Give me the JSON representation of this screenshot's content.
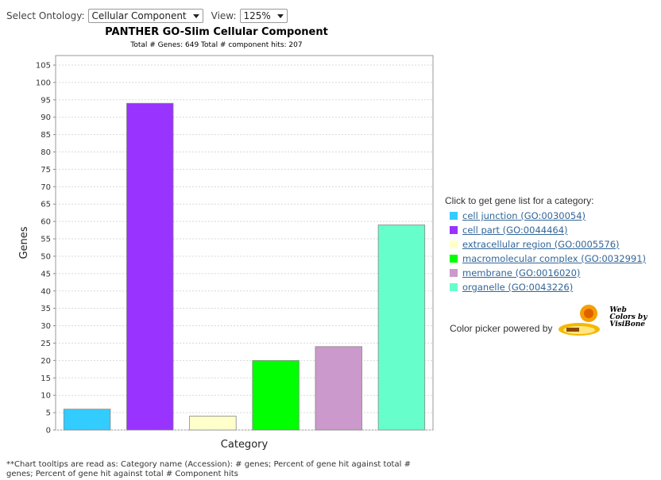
{
  "toolbar": {
    "ontology_label": "Select Ontology:",
    "ontology_value": "Cellular Component",
    "view_label": "View:",
    "view_value": "125%"
  },
  "legend": {
    "heading": "Click to get gene list for a category:",
    "items": [
      {
        "label": "cell junction (GO:0030054)",
        "color": "#33CCFF"
      },
      {
        "label": "cell part (GO:0044464)",
        "color": "#9933FF"
      },
      {
        "label": "extracellular region (GO:0005576)",
        "color": "#FFFFCC"
      },
      {
        "label": "macromolecular complex (GO:0032991)",
        "color": "#00FF00"
      },
      {
        "label": "membrane (GO:0016020)",
        "color": "#CC99CC"
      },
      {
        "label": "organelle (GO:0043226)",
        "color": "#66FFCC"
      }
    ]
  },
  "powered": {
    "text": "Color picker powered by",
    "logo_text": "Web Colors by VisiBone",
    "logo_line1": "Web",
    "logo_line2": "Colors by",
    "logo_line3": "VisiBone"
  },
  "footnote": "**Chart tooltips are read as: Category name (Accession): # genes; Percent of gene hit against total # genes; Percent of gene hit against total # Component hits",
  "chart_data": {
    "type": "bar",
    "title": "PANTHER GO-Slim Cellular Component",
    "subtitle": "Total # Genes: 649    Total # component hits: 207",
    "xlabel": "Category",
    "ylabel": "Genes",
    "ylim": [
      0,
      105
    ],
    "yticks": [
      0,
      5,
      10,
      15,
      20,
      25,
      30,
      35,
      40,
      45,
      50,
      55,
      60,
      65,
      70,
      75,
      80,
      85,
      90,
      95,
      100,
      105
    ],
    "grid": true,
    "legend_position": "right",
    "categories": [
      "cell junction (GO:0030054)",
      "cell part (GO:0044464)",
      "extracellular region (GO:0005576)",
      "macromolecular complex (GO:0032991)",
      "membrane (GO:0016020)",
      "organelle (GO:0043226)"
    ],
    "values": [
      6,
      94,
      4,
      20,
      24,
      59
    ],
    "colors": [
      "#33CCFF",
      "#9933FF",
      "#FFFFCC",
      "#00FF00",
      "#CC99CC",
      "#66FFCC"
    ]
  }
}
